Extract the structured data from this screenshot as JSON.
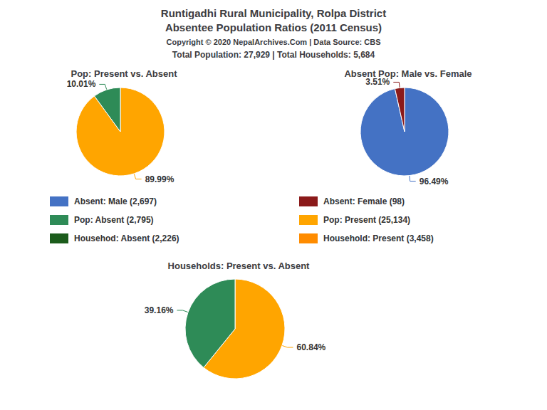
{
  "title": "Runtigadhi Rural Municipality, Rolpa District",
  "subtitle": "Absentee Population Ratios (2011 Census)",
  "annotations": [
    "Copyright © 2020 NepalArchives.Com | Data Source: CBS",
    "Total Population: 27,929 | Total Households: 5,684"
  ],
  "legend_entries": [
    {
      "label": "Absent: Male (2,697)",
      "color": "#4472C4"
    },
    {
      "label": "Absent: Female (98)",
      "color": "#8B1A1A"
    },
    {
      "label": "Pop: Absent (2,795)",
      "color": "#2E8B57"
    },
    {
      "label": "Pop: Present (25,134)",
      "color": "#FFA500"
    },
    {
      "label": "Househod: Absent (2,226)",
      "color": "#1C5C1C"
    },
    {
      "label": "Household: Present (3,458)",
      "color": "#FF8C00"
    }
  ],
  "chart_data": [
    {
      "type": "pie",
      "title": "Pop: Present vs. Absent",
      "values": [
        89.99,
        10.01
      ],
      "value_labels": [
        "89.99%",
        "10.01%"
      ],
      "colors": [
        "#FFA500",
        "#2E8B57"
      ],
      "data_labels": true
    },
    {
      "type": "pie",
      "title": "Absent Pop: Male vs. Female",
      "values": [
        96.49,
        3.51
      ],
      "value_labels": [
        "96.49%",
        "3.51%"
      ],
      "colors": [
        "#4472C4",
        "#8B1A1A"
      ],
      "data_labels": true
    },
    {
      "type": "pie",
      "title": "Households: Present vs. Absent",
      "values": [
        60.84,
        39.16
      ],
      "value_labels": [
        "60.84%",
        "39.16%"
      ],
      "colors": [
        "#FFA500",
        "#2E8B57"
      ],
      "data_labels": true
    }
  ]
}
